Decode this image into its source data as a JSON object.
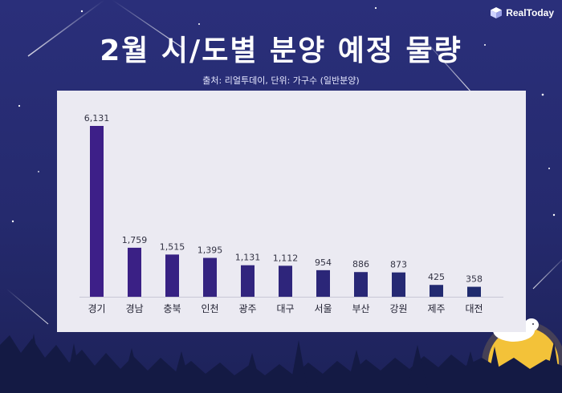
{
  "brand": {
    "logo_text": "RealToday"
  },
  "header": {
    "title": "2월 시/도별 분양 예정 물량",
    "subtitle": "출처: 리얼투데이, 단위: 가구수 (일반분양)"
  },
  "colors": {
    "accent": "#ff7a00",
    "background": "#2a2f7a",
    "panel": "#ebeaf2",
    "bar_first": "#3d1f88",
    "bar_last": "#1f2b6e"
  },
  "chart_data": {
    "type": "bar",
    "title": "2월 시/도별 분양 예정 물량",
    "xlabel": "",
    "ylabel": "",
    "categories": [
      "경기",
      "경남",
      "충북",
      "인천",
      "광주",
      "대구",
      "서울",
      "부산",
      "강원",
      "제주",
      "대전"
    ],
    "values": [
      6131,
      1759,
      1515,
      1395,
      1131,
      1112,
      954,
      886,
      873,
      425,
      358
    ],
    "value_labels": [
      "6,131",
      "1,759",
      "1,515",
      "1,395",
      "1,131",
      "1,112",
      "954",
      "886",
      "873",
      "425",
      "358"
    ],
    "ylim": [
      0,
      6131
    ],
    "grid": false,
    "legend": "none"
  }
}
